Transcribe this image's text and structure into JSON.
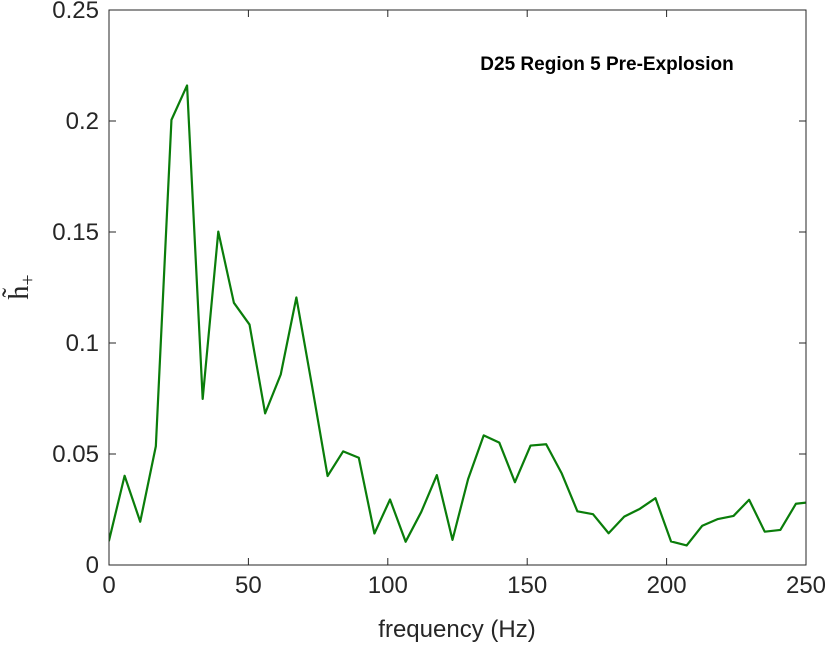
{
  "chart_data": {
    "type": "line",
    "title": "",
    "annotation": "D25 Region 5 Pre-Explosion",
    "xlabel": "frequency (Hz)",
    "ylabel": "h̃",
    "ylabel_subscript": "+",
    "xlim": [
      0,
      250
    ],
    "ylim": [
      0,
      0.25
    ],
    "xticks": [
      0,
      50,
      100,
      150,
      200,
      250
    ],
    "yticks": [
      0,
      0.05,
      0.1,
      0.15,
      0.2,
      0.25
    ],
    "xtick_labels": [
      "0",
      "50",
      "100",
      "150",
      "200",
      "250"
    ],
    "ytick_labels": [
      "0",
      "0.05",
      "0.1",
      "0.15",
      "0.2",
      "0.25"
    ],
    "grid": false,
    "line_color": "#0a7d0a",
    "series": [
      {
        "x": [
          0,
          5.6,
          11.2,
          16.8,
          22.4,
          28.0,
          33.6,
          39.2,
          44.8,
          50.4,
          56.0,
          61.6,
          67.2,
          72.8,
          78.4,
          84.0,
          89.6,
          95.2,
          100.8,
          106.4,
          112.0,
          117.6,
          123.2,
          128.8,
          134.4,
          140.0,
          145.6,
          151.2,
          156.8,
          162.4,
          168.0,
          173.6,
          179.2,
          184.8,
          190.4,
          196.0,
          201.6,
          207.2,
          212.8,
          218.4,
          224.0,
          229.6,
          235.2,
          240.8,
          246.4,
          252.0
        ],
        "values": [
          0.011,
          0.0402,
          0.0195,
          0.0535,
          0.2005,
          0.216,
          0.0748,
          0.1502,
          0.1181,
          0.1083,
          0.0683,
          0.0858,
          0.1205,
          0.0808,
          0.0401,
          0.0512,
          0.0483,
          0.0142,
          0.0295,
          0.0105,
          0.0239,
          0.0405,
          0.0113,
          0.0387,
          0.0584,
          0.0551,
          0.0373,
          0.0538,
          0.0544,
          0.0412,
          0.0242,
          0.0229,
          0.0143,
          0.0218,
          0.0253,
          0.0301,
          0.0106,
          0.0088,
          0.0177,
          0.0207,
          0.0221,
          0.0294,
          0.015,
          0.0158,
          0.0276,
          0.0284
        ]
      }
    ]
  }
}
